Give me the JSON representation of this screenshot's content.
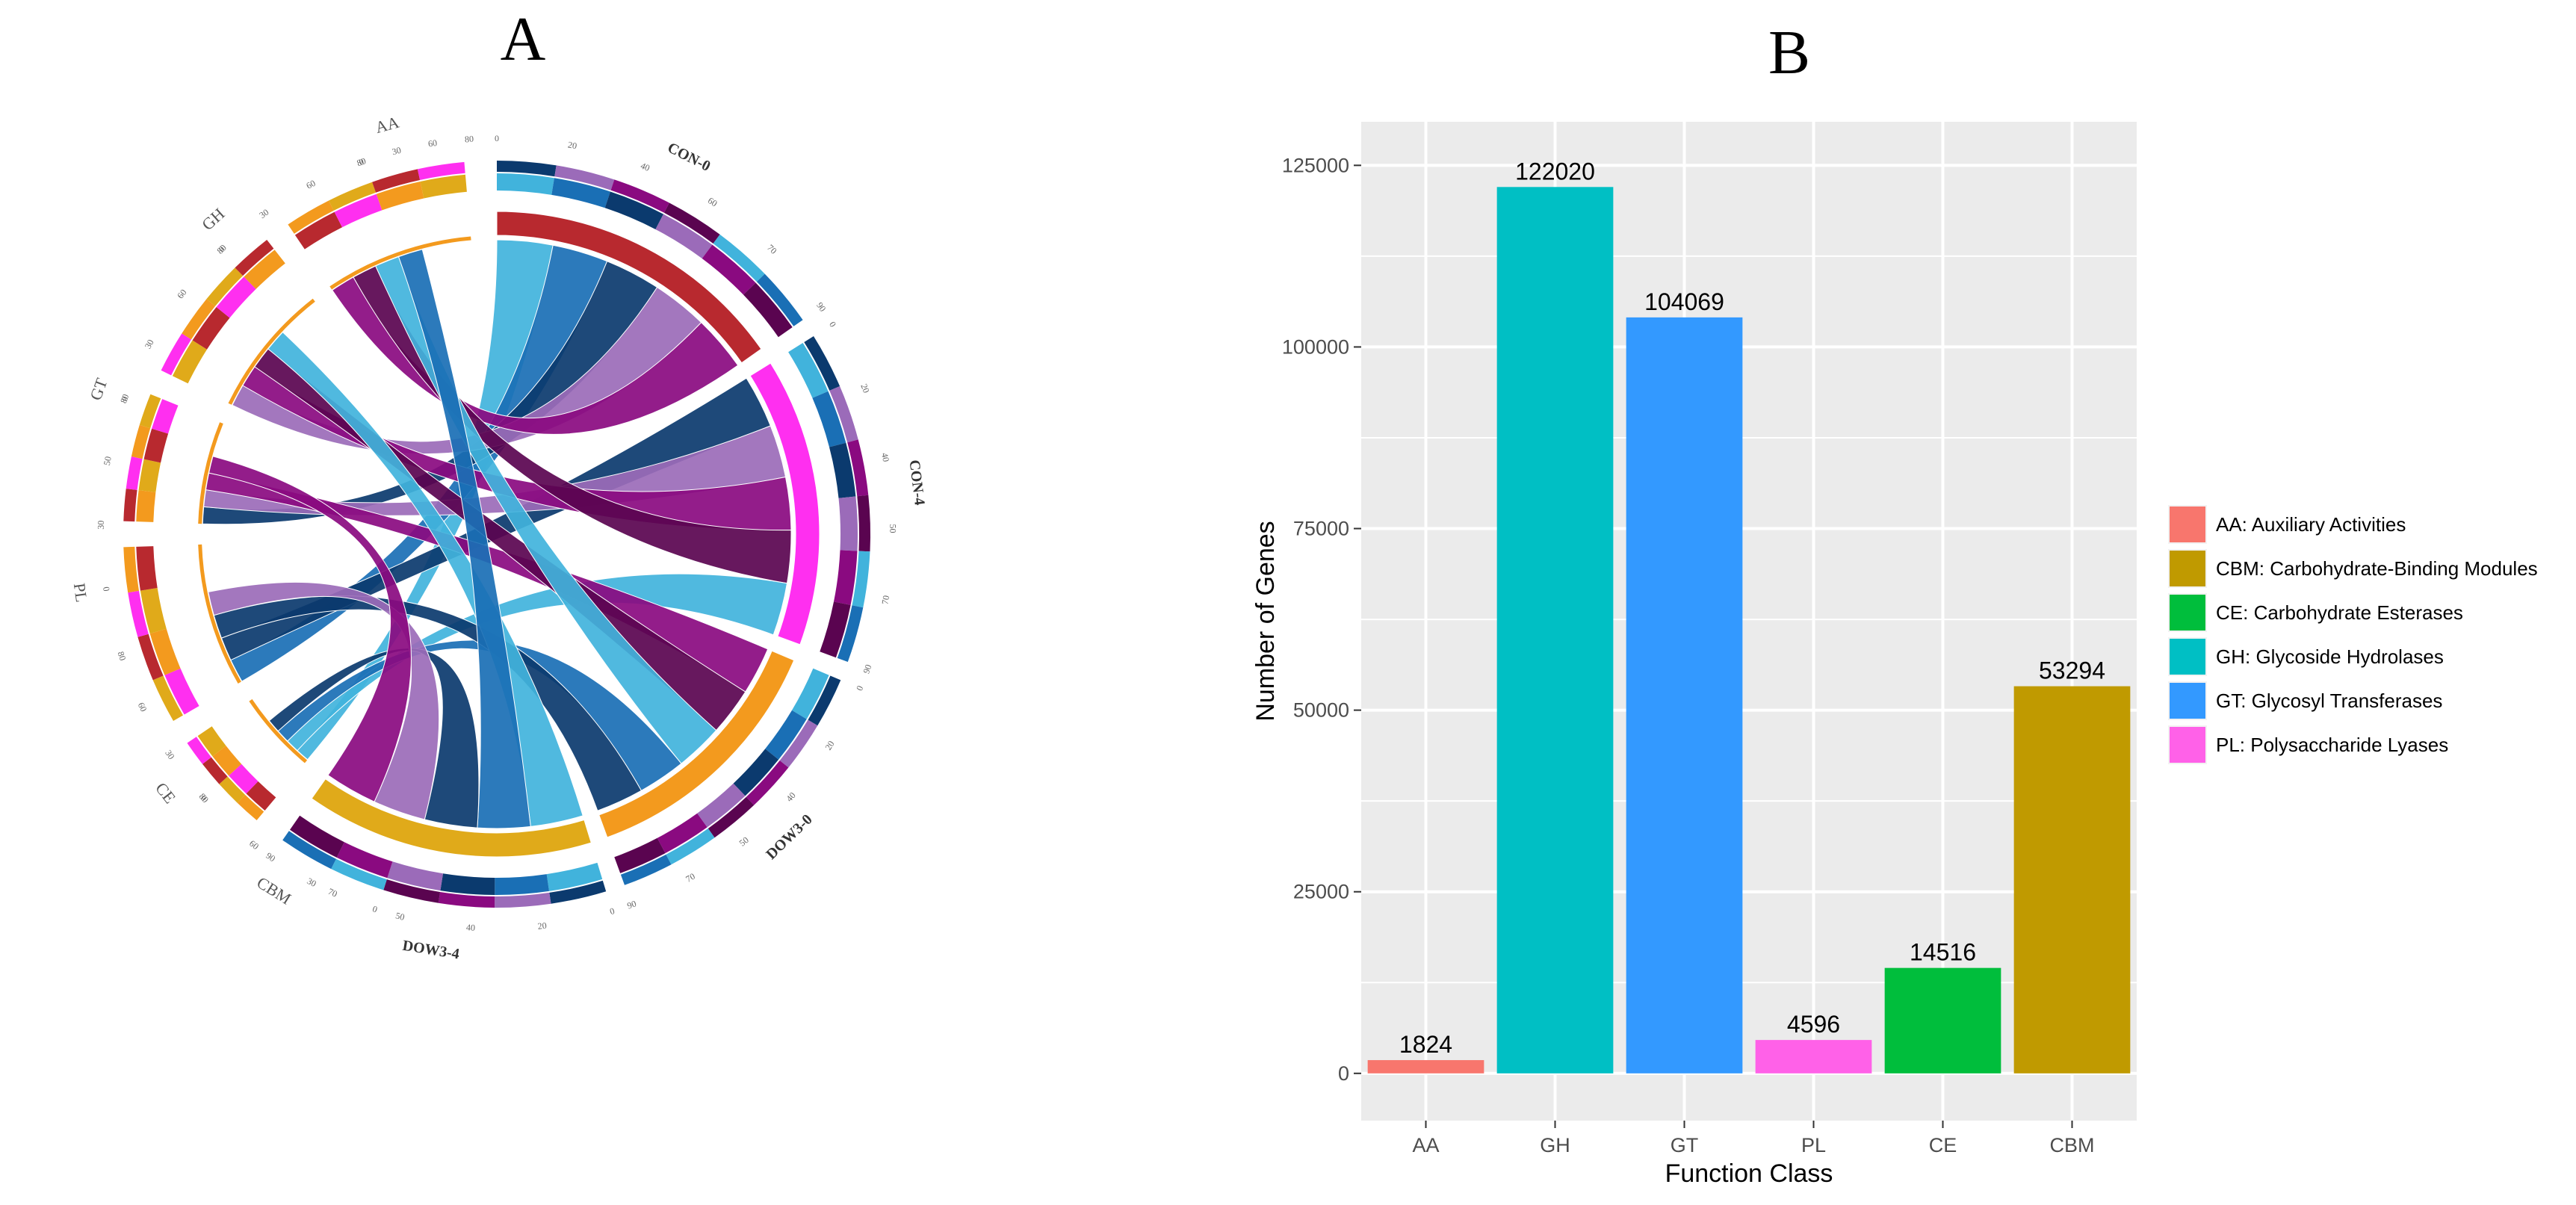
{
  "panel_a": {
    "letter": "A",
    "segments": [
      {
        "name": "CON-0",
        "bold": true,
        "ticks": [
          "0",
          "20",
          "40",
          "60",
          "70",
          "90"
        ]
      },
      {
        "name": "CON-4",
        "bold": true,
        "ticks": [
          "0",
          "20",
          "40",
          "50",
          "70",
          "90"
        ]
      },
      {
        "name": "DOW3-0",
        "bold": true,
        "ticks": [
          "0",
          "20",
          "40",
          "50",
          "70",
          "90"
        ]
      },
      {
        "name": "DOW3-4",
        "bold": true,
        "ticks": [
          "0",
          "20",
          "40",
          "50",
          "70",
          "90"
        ]
      },
      {
        "name": "CBM",
        "bold": false,
        "ticks": [
          "0",
          "30",
          "60",
          "80"
        ]
      },
      {
        "name": "CE",
        "bold": false,
        "ticks": [
          "0",
          "30",
          "60",
          "80"
        ]
      },
      {
        "name": "PL",
        "bold": false,
        "ticks": [
          "0",
          "30",
          "50",
          "80"
        ]
      },
      {
        "name": "GT",
        "bold": false,
        "ticks": [
          "0",
          "30",
          "60",
          "80"
        ]
      },
      {
        "name": "GH",
        "bold": false,
        "ticks": [
          "0",
          "30",
          "60",
          "80"
        ]
      },
      {
        "name": "AA",
        "bold": false,
        "ticks": [
          "0",
          "30",
          "60",
          "80"
        ]
      }
    ],
    "colors": {
      "sample_shades": [
        "#41b3dc",
        "#1a6fb5",
        "#0b3a6e",
        "#9b6bb9",
        "#8a0a80",
        "#5a0450"
      ],
      "class_red": "#b8292f",
      "class_magenta": "#ff2ff0",
      "class_orange": "#f39a1e",
      "class_gold": "#e0aa1a"
    }
  },
  "panel_b": {
    "letter": "B",
    "legend": [
      {
        "label": "AA: Auxiliary Activities",
        "color": "#f8766d"
      },
      {
        "label": "CBM: Carbohydrate-Binding Modules",
        "color": "#c09a00"
      },
      {
        "label": "CE: Carbohydrate Esterases",
        "color": "#00be3c"
      },
      {
        "label": "GH: Glycoside Hydrolases",
        "color": "#00bfc4"
      },
      {
        "label": "GT: Glycosyl Transferases",
        "color": "#3399ff"
      },
      {
        "label": "PL: Polysaccharide Lyases",
        "color": "#ff61e8"
      }
    ]
  },
  "chart_data": {
    "type": "bar",
    "title": "",
    "xlabel": "Function Class",
    "ylabel": "Number of Genes",
    "categories": [
      "AA",
      "GH",
      "GT",
      "PL",
      "CE",
      "CBM"
    ],
    "values": [
      1824,
      122020,
      104069,
      4596,
      14516,
      53294
    ],
    "value_labels": [
      "1824",
      "122020",
      "104069",
      "4596",
      "14516",
      "53294"
    ],
    "bar_colors": [
      "#f8766d",
      "#00bfc4",
      "#3399ff",
      "#ff61e8",
      "#00be3c",
      "#c09a00"
    ],
    "ylim": [
      -6500,
      131000
    ],
    "yticks": [
      0,
      25000,
      50000,
      75000,
      100000,
      125000
    ],
    "ytick_labels": [
      "0",
      "25000",
      "50000",
      "75000",
      "100000",
      "125000"
    ],
    "grid": true,
    "legend_position": "right"
  }
}
